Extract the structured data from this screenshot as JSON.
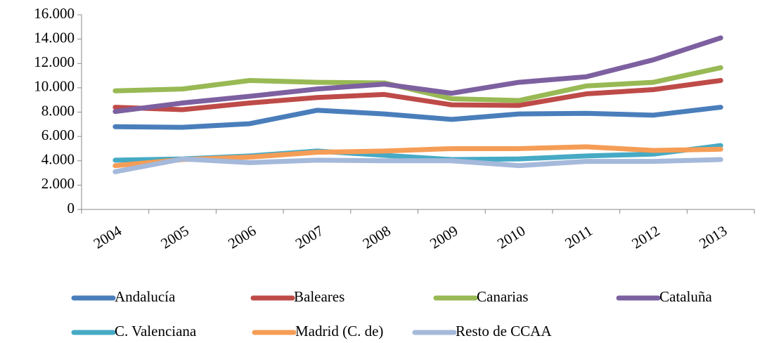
{
  "chart_data": {
    "type": "line",
    "categories": [
      "2004",
      "2005",
      "2006",
      "2007",
      "2008",
      "2009",
      "2010",
      "2011",
      "2012",
      "2013"
    ],
    "ylim": [
      0,
      16000
    ],
    "yticks": [
      0,
      {
        "value": 2000,
        "label": "2.000"
      },
      {
        "value": 4000,
        "label": "4.000"
      },
      {
        "value": 6000,
        "label": "6.000"
      },
      {
        "value": 8000,
        "label": "8.000"
      },
      {
        "value": 10000,
        "label": "10.000"
      },
      {
        "value": 12000,
        "label": "12.000"
      },
      {
        "value": 14000,
        "label": "14.000"
      },
      {
        "value": 16000,
        "label": "16.000"
      }
    ],
    "grid": false,
    "legend": "bottom",
    "series": [
      {
        "name": "Andalucía",
        "color": "#4a7ebb",
        "values": [
          6800,
          6750,
          7050,
          8150,
          7850,
          7400,
          7850,
          7900,
          7750,
          8400
        ]
      },
      {
        "name": "Baleares",
        "color": "#be4b48",
        "values": [
          8400,
          8200,
          8750,
          9200,
          9450,
          8600,
          8550,
          9500,
          9850,
          10600
        ]
      },
      {
        "name": "Canarias",
        "color": "#98b954",
        "values": [
          9750,
          9900,
          10600,
          10450,
          10400,
          9100,
          8950,
          10150,
          10450,
          11650
        ]
      },
      {
        "name": "Cataluña",
        "color": "#7d60a0",
        "values": [
          8050,
          8750,
          9300,
          9900,
          10300,
          9550,
          10450,
          10900,
          12300,
          14100
        ]
      },
      {
        "name": "C. Valenciana",
        "color": "#46aac5",
        "values": [
          4050,
          4150,
          4400,
          4800,
          4450,
          4100,
          4150,
          4400,
          4550,
          5250
        ]
      },
      {
        "name": "Madrid (C. de)",
        "color": "#f59d56",
        "values": [
          3600,
          4100,
          4300,
          4700,
          4800,
          5000,
          5000,
          5150,
          4850,
          4950
        ]
      },
      {
        "name": "Resto de CCAA",
        "color": "#a5b9da",
        "values": [
          3100,
          4150,
          3850,
          4050,
          4000,
          4000,
          3600,
          3950,
          3950,
          4100
        ]
      }
    ]
  }
}
